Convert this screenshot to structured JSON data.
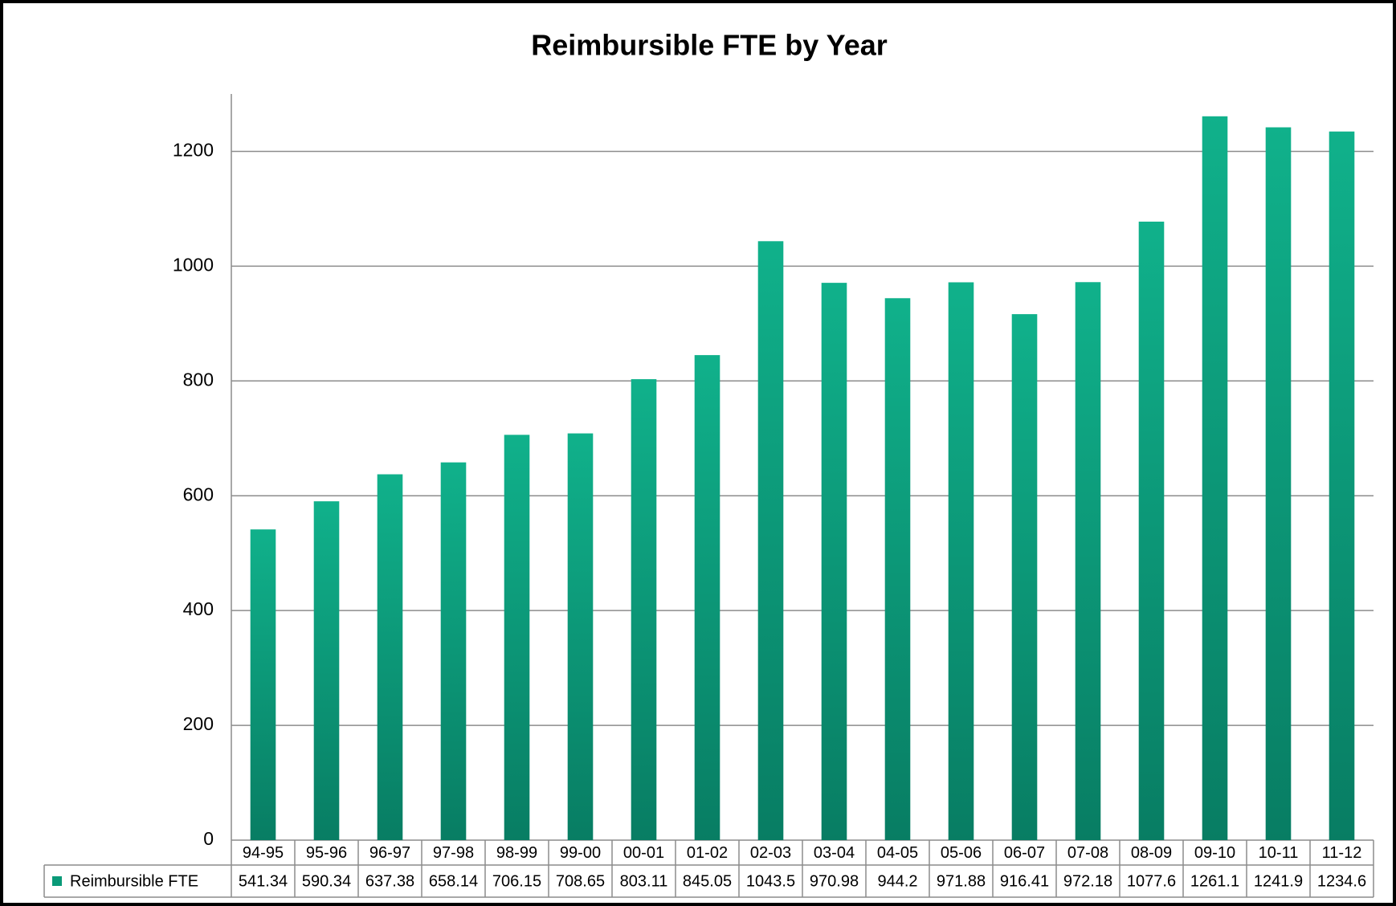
{
  "chart_data": {
    "type": "bar",
    "title": "Reimbursible FTE by Year",
    "categories": [
      "94-95",
      "95-96",
      "96-97",
      "97-98",
      "98-99",
      "99-00",
      "00-01",
      "01-02",
      "02-03",
      "03-04",
      "04-05",
      "05-06",
      "06-07",
      "07-08",
      "08-09",
      "09-10",
      "10-11",
      "11-12"
    ],
    "series": [
      {
        "name": "Reimbursible FTE",
        "color": "#0a9a78",
        "values": [
          541.34,
          590.34,
          637.38,
          658.14,
          706.15,
          708.65,
          803.11,
          845.05,
          1043.5,
          970.98,
          944.2,
          971.88,
          916.41,
          972.18,
          1077.6,
          1261.1,
          1241.9,
          1234.6
        ]
      }
    ],
    "ylim": [
      0,
      1300
    ],
    "yticks": [
      0,
      200,
      400,
      600,
      800,
      1000,
      1200
    ],
    "grid": true
  }
}
